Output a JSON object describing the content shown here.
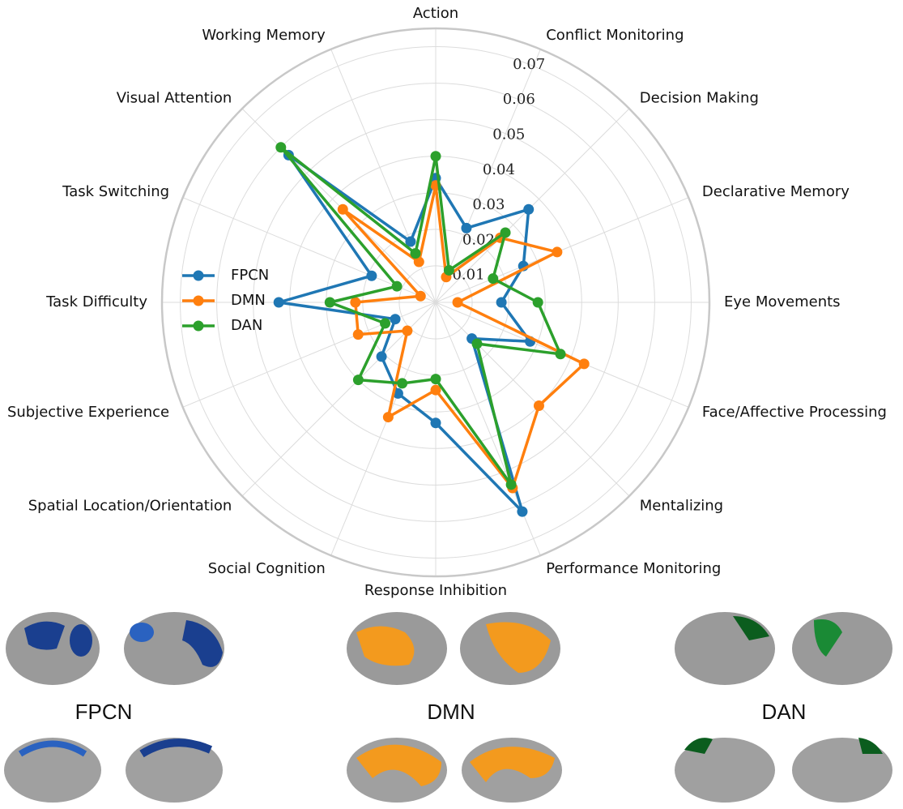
{
  "chart_data": {
    "type": "radar",
    "categories": [
      "Action",
      "Conflict Monitoring",
      "Decision Making",
      "Declarative Memory",
      "Eye Movements",
      "Face/Affective Processing",
      "Mentalizing",
      "Performance Monitoring",
      "Response Inhibition",
      "Social Cognition",
      "Spatial Location/Orientation",
      "Subjective Experience",
      "Task Difficulty",
      "Task Switching",
      "Visual Attention",
      "Working Memory"
    ],
    "series": [
      {
        "name": "FPCN",
        "color": "#1f77b4",
        "values": [
          0.034,
          0.022,
          0.036,
          0.026,
          0.018,
          0.028,
          0.014,
          0.062,
          0.033,
          0.027,
          0.021,
          0.012,
          0.043,
          0.019,
          0.057,
          0.018
        ]
      },
      {
        "name": "DMN",
        "color": "#ff7f0e",
        "values": [
          0.032,
          0.0075,
          0.025,
          0.036,
          0.006,
          0.044,
          0.04,
          0.055,
          0.024,
          0.034,
          0.011,
          0.023,
          0.022,
          0.0045,
          0.036,
          0.012
        ]
      },
      {
        "name": "DAN",
        "color": "#2ca02c",
        "values": [
          0.04,
          0.0095,
          0.027,
          0.017,
          0.028,
          0.037,
          0.016,
          0.054,
          0.021,
          0.024,
          0.03,
          0.015,
          0.029,
          0.0115,
          0.06,
          0.0145
        ]
      }
    ],
    "ylim": [
      0,
      0.075
    ],
    "yticks": [
      0.01,
      0.02,
      0.03,
      0.04,
      0.05,
      0.06,
      0.07
    ],
    "grid": true,
    "legend": "center left"
  },
  "brain_labels": [
    "FPCN",
    "DMN",
    "DAN"
  ]
}
